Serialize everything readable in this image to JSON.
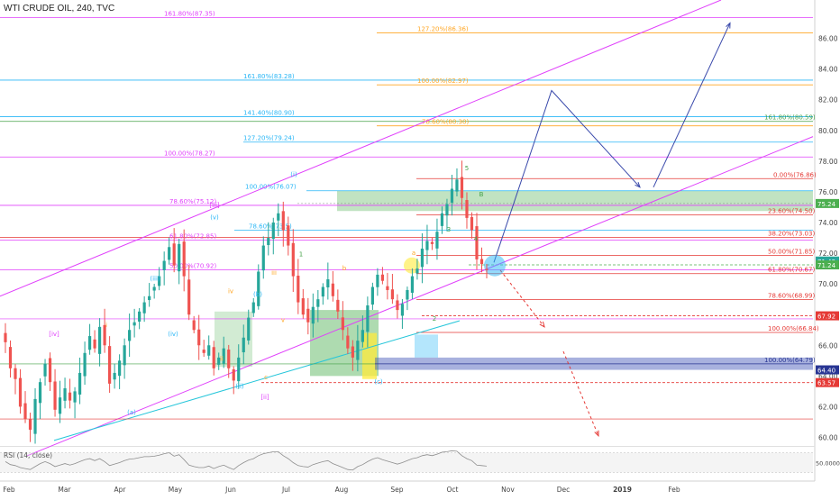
{
  "header": {
    "symbol": "WTI CRUDE OIL, 240, TVC"
  },
  "chart_data": {
    "type": "candlestick",
    "ylim": [
      59.5,
      88.5
    ],
    "y_ticks": [
      "86.00",
      "84.00",
      "82.00",
      "80.00",
      "78.00",
      "76.00",
      "74.00",
      "72.00",
      "70.00",
      "68.00",
      "66.00",
      "64.00",
      "62.00",
      "60.00"
    ],
    "x_ticks": [
      "Feb",
      "Mar",
      "Apr",
      "May",
      "Jun",
      "Jul",
      "Aug",
      "Sep",
      "Oct",
      "Nov",
      "Dec",
      "2019",
      "Feb"
    ],
    "price_badges": [
      {
        "label": "75.24",
        "color": "#4caf50"
      },
      {
        "label": "71.49",
        "color": "#26a69a"
      },
      {
        "label": "71.24",
        "color": "#4caf50"
      },
      {
        "label": "67.92",
        "color": "#e53935"
      },
      {
        "label": "64.40",
        "color": "#283593"
      },
      {
        "label": "63.57",
        "color": "#e53935"
      }
    ],
    "horizontal_levels": [
      {
        "price": 87.35,
        "label": "161.80%(87.35)",
        "color": "#e040fb"
      },
      {
        "price": 86.36,
        "label": "127.20%(86.36)",
        "color": "#ffa726"
      },
      {
        "price": 83.28,
        "label": "161.80%(83.28)",
        "color": "#29b6f6"
      },
      {
        "price": 82.97,
        "label": "100.00%(82.97)",
        "color": "#ffa726"
      },
      {
        "price": 80.9,
        "label": "141.40%(80.90)",
        "color": "#29b6f6"
      },
      {
        "price": 80.59,
        "label": "161.80%(80.59)",
        "color": "#43a047"
      },
      {
        "price": 80.3,
        "label": "78.60%(80.30)",
        "color": "#ffa726"
      },
      {
        "price": 79.24,
        "label": "127.20%(79.24)",
        "color": "#29b6f6"
      },
      {
        "price": 78.27,
        "label": "100.00%(78.27)",
        "color": "#e040fb"
      },
      {
        "price": 76.86,
        "label": "0.00%(76.86)",
        "color": "#e53935"
      },
      {
        "price": 76.07,
        "label": "100.00%(76.07)",
        "color": "#29b6f6"
      },
      {
        "price": 75.12,
        "label": "78.60%(75.12)",
        "color": "#e040fb"
      },
      {
        "price": 74.5,
        "label": "23.60%(74.50)",
        "color": "#e53935"
      },
      {
        "price": 73.5,
        "label": "78.60%(73.5)",
        "color": "#29b6f6"
      },
      {
        "price": 73.03,
        "label": "38.20%(73.03)",
        "color": "#e53935"
      },
      {
        "price": 72.85,
        "label": "61.80%(72.85)",
        "color": "#e040fb"
      },
      {
        "price": 71.85,
        "label": "50.00%(71.85)",
        "color": "#e53935"
      },
      {
        "price": 70.92,
        "label": "50.00%(70.92)",
        "color": "#e040fb"
      },
      {
        "price": 70.67,
        "label": "61.80%(70.67)",
        "color": "#e53935"
      },
      {
        "price": 68.99,
        "label": "78.60%(68.99)",
        "color": "#e53935"
      },
      {
        "price": 66.84,
        "label": "100.00%(66.84)",
        "color": "#e53935"
      },
      {
        "price": 64.79,
        "label": "100.00%(64.79)",
        "color": "#283593"
      }
    ],
    "wave_labels": [
      "(i)",
      "(ii)",
      "(iii)",
      "(iv)",
      "(v)",
      "i",
      "ii",
      "iii",
      "iv",
      "v",
      "1",
      "2",
      "3",
      "4",
      "5",
      "a",
      "b",
      "c",
      "(a)",
      "(b)",
      "(c)",
      "[ii]",
      "[iii]",
      "[iv]",
      "B"
    ],
    "series": [
      {
        "name": "price",
        "close": [
          66.2,
          64.5,
          63.8,
          62.0,
          61.2,
          60.5,
          62.5,
          63.6,
          64.8,
          63.6,
          61.8,
          62.6,
          63.2,
          62.4,
          63.0,
          64.2,
          65.5,
          66.6,
          65.8,
          67.2,
          66.0,
          63.5,
          64.2,
          65.0,
          66.0,
          67.0,
          67.5,
          68.2,
          68.8,
          69.2,
          69.8,
          70.5,
          71.5,
          72.4,
          71.2,
          72.6,
          70.5,
          68.0,
          67.0,
          66.0,
          65.5,
          66.0,
          64.5,
          65.2,
          65.8,
          64.5,
          63.7,
          65.2,
          66.5,
          67.8,
          68.8,
          70.8,
          72.5,
          73.0,
          74.0,
          74.6,
          73.5,
          72.5,
          70.5,
          68.8,
          68.0,
          67.5,
          68.5,
          69.0,
          69.8,
          70.3,
          69.2,
          68.2,
          67.0,
          65.8,
          65.2,
          66.3,
          67.0,
          68.6,
          69.8,
          70.6,
          70.2,
          69.6,
          69.0,
          68.3,
          68.7,
          69.6,
          70.5,
          71.0,
          72.3,
          72.8,
          72.6,
          73.4,
          74.6,
          75.2,
          76.2,
          76.8,
          75.6,
          74.3,
          73.5,
          71.6,
          71.3,
          70.9
        ]
      }
    ],
    "rsi": {
      "label": "RSI (14, close)",
      "ylim": [
        20,
        80
      ],
      "ticks": [
        "50.0000"
      ],
      "values": [
        52,
        46,
        44,
        40,
        38,
        36,
        42,
        48,
        52,
        48,
        42,
        45,
        48,
        45,
        48,
        52,
        56,
        58,
        54,
        58,
        52,
        44,
        47,
        50,
        54,
        57,
        58,
        60,
        62,
        62,
        63,
        65,
        68,
        70,
        63,
        66,
        56,
        45,
        42,
        40,
        40,
        43,
        38,
        42,
        45,
        40,
        36,
        44,
        50,
        55,
        58,
        64,
        68,
        70,
        72,
        72,
        64,
        58,
        50,
        44,
        42,
        41,
        46,
        49,
        52,
        54,
        48,
        44,
        40,
        36,
        35,
        42,
        46,
        52,
        57,
        60,
        56,
        53,
        50,
        47,
        50,
        54,
        58,
        60,
        64,
        66,
        64,
        67,
        71,
        72,
        74,
        73,
        64,
        58,
        54,
        45,
        44,
        43
      ]
    }
  }
}
